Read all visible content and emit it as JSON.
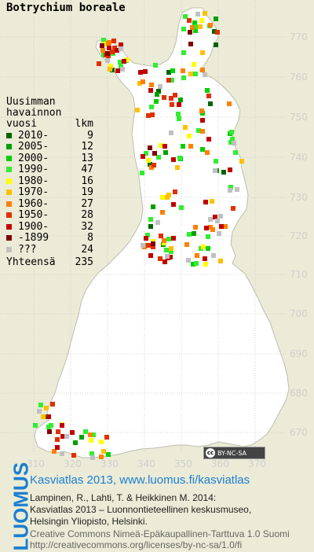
{
  "title": "Botrychium boreale",
  "legend": {
    "header": [
      "Uusimman",
      "havainnon",
      "vuosi"
    ],
    "count_header": "lkm",
    "items": [
      {
        "label": "2010-",
        "count": "9",
        "color": "#006400"
      },
      {
        "label": "2005-",
        "count": "12",
        "color": "#00a000"
      },
      {
        "label": "2000-",
        "count": "13",
        "color": "#00d000"
      },
      {
        "label": "1990-",
        "count": "47",
        "color": "#30ee30"
      },
      {
        "label": "1980-",
        "count": "16",
        "color": "#ffff00"
      },
      {
        "label": "1970-",
        "count": "19",
        "color": "#ffc000"
      },
      {
        "label": "1960-",
        "count": "27",
        "color": "#ff8000"
      },
      {
        "label": "1950-",
        "count": "28",
        "color": "#e03000"
      },
      {
        "label": "1900-",
        "count": "32",
        "color": "#c00000"
      },
      {
        "label": "-1899",
        "count": "8",
        "color": "#800000"
      },
      {
        "label": "???",
        "count": "24",
        "color": "#c0c0c0"
      }
    ],
    "total_label": "Yhteensä",
    "total": "235"
  },
  "axis_x_ticks": [
    "310",
    "320",
    "330",
    "340",
    "350",
    "360",
    "370"
  ],
  "axis_y_ticks": [
    "770",
    "760",
    "750",
    "740",
    "730",
    "720",
    "710",
    "700",
    "690",
    "680",
    "670"
  ],
  "license_badge": "BY-NC-SA",
  "footer": {
    "logo": "LUOMUS",
    "line1": "Kasviatlas 2013, www.luomus.fi/kasviatlas",
    "citation": [
      "Lampinen, R., Lahti, T. & Heikkinen M. 2014:",
      "Kasviatlas 2013 – Luonnontieteellinen keskusmuseo,",
      "Helsingin Yliopisto, Helsinki."
    ],
    "license": [
      "Creative Commons Nimeä-Epäkaupallinen-Tarttuva 1.0 Suomi",
      "http://creativecommons.org/licenses/by-nc-sa/1.0/fi"
    ]
  },
  "colors": {
    "land": "#ffffff",
    "sea": "#ebebd7",
    "grid": "#c8c8c8",
    "axis": "#d0d0d0",
    "brand": "#1b7fd1"
  }
}
